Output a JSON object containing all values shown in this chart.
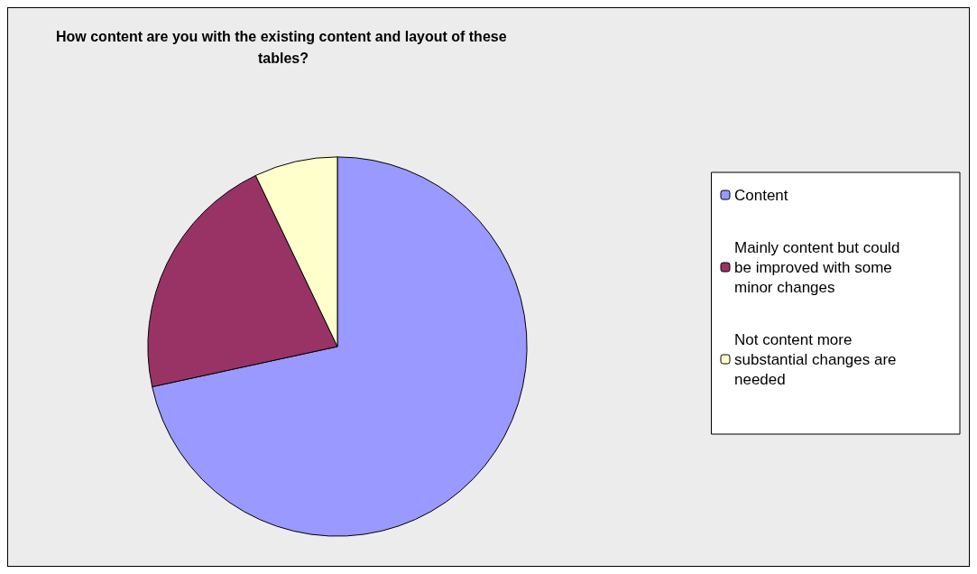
{
  "chart_data": {
    "type": "pie",
    "title": "How content are you with the existing content and layout of these tables?",
    "categories": [
      "Content",
      "Mainly content but could be improved with some minor changes",
      "Not content more substantial changes are needed"
    ],
    "values": [
      71.6,
      21.3,
      7.1
    ],
    "colors": [
      "#9999ff",
      "#993366",
      "#ffffcc"
    ],
    "legend": "right"
  }
}
